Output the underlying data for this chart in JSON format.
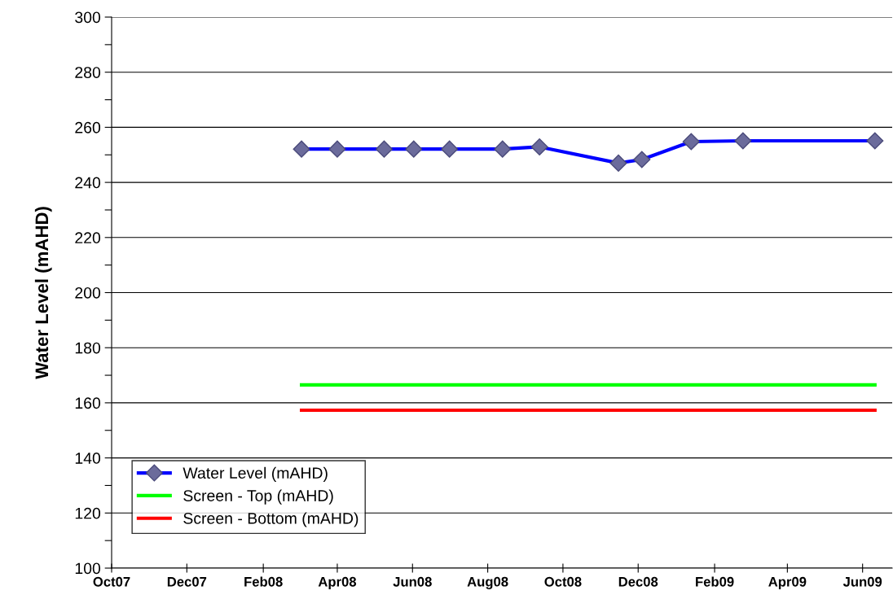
{
  "chart_data": {
    "type": "line",
    "ylabel": "Water Level (mAHD)",
    "xlim": [
      "2007-10-01",
      "2009-06-25"
    ],
    "xticks": [
      {
        "value": "2007-10-01",
        "label": "Oct07"
      },
      {
        "value": "2007-12-01",
        "label": "Dec07"
      },
      {
        "value": "2008-02-01",
        "label": "Feb08"
      },
      {
        "value": "2008-04-01",
        "label": "Apr08"
      },
      {
        "value": "2008-06-01",
        "label": "Jun08"
      },
      {
        "value": "2008-08-01",
        "label": "Aug08"
      },
      {
        "value": "2008-10-01",
        "label": "Oct08"
      },
      {
        "value": "2008-12-01",
        "label": "Dec08"
      },
      {
        "value": "2009-02-01",
        "label": "Feb09"
      },
      {
        "value": "2009-04-01",
        "label": "Apr09"
      },
      {
        "value": "2009-06-01",
        "label": "Jun09"
      }
    ],
    "ylim": [
      100,
      300
    ],
    "yticks": [
      100,
      {
        "value": 110,
        "label": null
      },
      120,
      {
        "value": 130,
        "label": null
      },
      140,
      {
        "value": 150,
        "label": null
      },
      160,
      {
        "value": 170,
        "label": null
      },
      180,
      {
        "value": 190,
        "label": null
      },
      200,
      {
        "value": 210,
        "label": null
      },
      220,
      {
        "value": 230,
        "label": null
      },
      240,
      {
        "value": 250,
        "label": null
      },
      260,
      {
        "value": 270,
        "label": null
      },
      280,
      {
        "value": 290,
        "label": null
      },
      300
    ],
    "grid": "y",
    "legend": "bottom left",
    "line_style": "solid",
    "series": [
      {
        "name": "Water Level (mAHD)",
        "color": "#0000ff",
        "marker": "diamond",
        "x": [
          "2008-03-03",
          "2008-04-01",
          "2008-05-09",
          "2008-06-02",
          "2008-07-01",
          "2008-08-13",
          "2008-09-12",
          "2008-11-15",
          "2008-12-04",
          "2009-01-13",
          "2009-02-24",
          "2009-06-11"
        ],
        "values": [
          252.1,
          252.1,
          252.1,
          252.1,
          252.1,
          252.1,
          252.9,
          247.0,
          248.3,
          254.8,
          255.1,
          255.1
        ]
      },
      {
        "name": "Screen - Top (mAHD)",
        "color": "#00ff00",
        "marker": "none",
        "x": [
          "2008-03-03",
          "2009-06-11"
        ],
        "values": [
          166.5,
          166.5
        ]
      },
      {
        "name": "Screen - Bottom (mAHD)",
        "color": "#ff0000",
        "marker": "none",
        "x": [
          "2008-03-03",
          "2009-06-11"
        ],
        "values": [
          157.3,
          157.3
        ]
      }
    ]
  }
}
